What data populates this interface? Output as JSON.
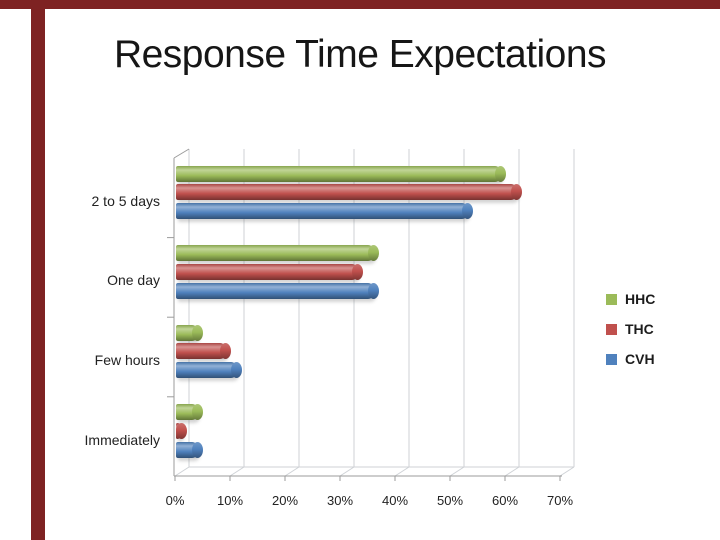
{
  "slide": {
    "title": "Response Time Expectations",
    "accent_border_color": "#7e2222"
  },
  "chart_data": {
    "type": "bar",
    "orientation": "horizontal",
    "style": "3d-cylinder",
    "title": "Response Time Expectations",
    "categories": [
      "2 to 5 days",
      "One day",
      "Few hours",
      "Immediately"
    ],
    "series": [
      {
        "name": "HHC",
        "color": "#9bbb59",
        "values": [
          59,
          36,
          4,
          4
        ]
      },
      {
        "name": "THC",
        "color": "#c0504d",
        "values": [
          62,
          33,
          9,
          1
        ]
      },
      {
        "name": "CVH",
        "color": "#4f81bd",
        "values": [
          53,
          36,
          11,
          4
        ]
      }
    ],
    "value_axis": {
      "min": 0,
      "max": 70,
      "step": 10,
      "tick_labels": [
        "0%",
        "10%",
        "20%",
        "30%",
        "40%",
        "50%",
        "60%",
        "70%"
      ],
      "grid": true
    },
    "legend": {
      "position": "right",
      "entries": [
        "HHC",
        "THC",
        "CVH"
      ]
    }
  }
}
